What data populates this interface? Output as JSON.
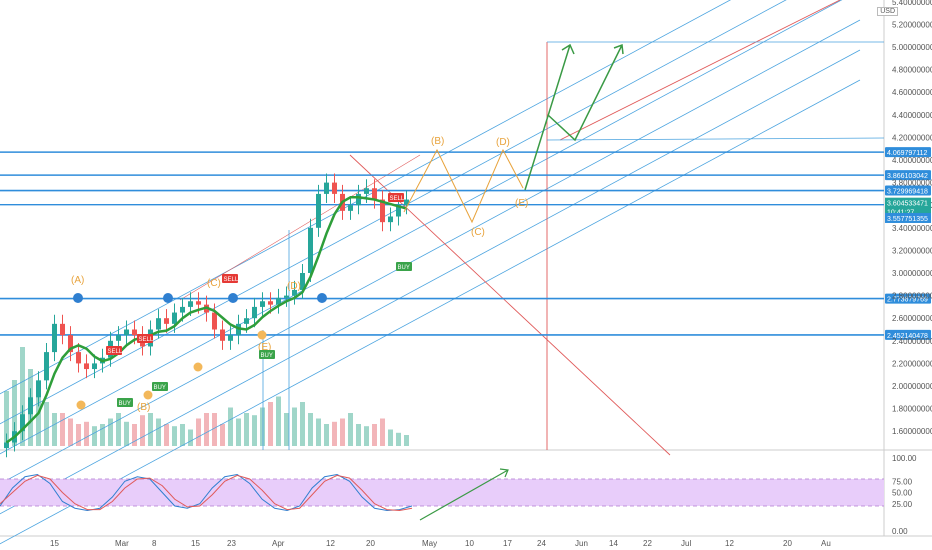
{
  "chart_data": {
    "type": "line",
    "currency": "USD",
    "price_axis": {
      "ticks": [
        "5.400000000",
        "5.200000000",
        "5.000000000",
        "4.800000000",
        "4.600000000",
        "4.400000000",
        "4.200000000",
        "4.000000000",
        "3.800000000",
        "3.600000000",
        "3.400000000",
        "3.200000000",
        "3.000000000",
        "2.800000000",
        "2.600000000",
        "2.400000000",
        "2.200000000",
        "2.000000000",
        "1.800000000",
        "1.600000000"
      ],
      "range": [
        1.45,
        5.45
      ]
    },
    "time_axis": {
      "ticks": [
        "15",
        "Mar",
        "8",
        "15",
        "23",
        "Apr",
        "12",
        "20",
        "May",
        "10",
        "17",
        "24",
        "Jun",
        "14",
        "22",
        "Jul",
        "12",
        "20",
        "Au"
      ]
    },
    "horizontal_levels": [
      {
        "value": 4.069797112,
        "label": "4.069797112"
      },
      {
        "value": 3.866103042,
        "label": "3.866103042"
      },
      {
        "value": 3.729969418,
        "label": "3.729969418"
      },
      {
        "value": 2.773679769,
        "label": "2.773679769"
      },
      {
        "value": 2.452140478,
        "label": "2.452140478"
      }
    ],
    "current_price": {
      "value": 3.604533471,
      "label": "3.604533471",
      "countdown": "10:41:27"
    },
    "extra_price_label": {
      "value": 3.557751355,
      "label": "3.557751355"
    },
    "signals": [
      "BUY",
      "BUY",
      "BUY",
      "SELL",
      "SELL",
      "SELL",
      "SELL",
      "BUY"
    ],
    "wave_labels": [
      "(A)",
      "(B)",
      "(C)",
      "(D)",
      "(E)",
      "(B)",
      "(C)",
      "(D)",
      "(E)"
    ],
    "oscillator": {
      "ticks": [
        "100.00",
        "75.00",
        "50.00",
        "25.00",
        "0.00"
      ],
      "upper_band": 80,
      "lower_band": 20,
      "range": [
        0,
        100
      ]
    },
    "closes": [
      1.5,
      1.6,
      1.75,
      1.9,
      2.05,
      2.3,
      2.55,
      2.45,
      2.3,
      2.2,
      2.15,
      2.2,
      2.25,
      2.4,
      2.45,
      2.5,
      2.45,
      2.35,
      2.5,
      2.6,
      2.55,
      2.65,
      2.7,
      2.75,
      2.72,
      2.65,
      2.5,
      2.4,
      2.45,
      2.55,
      2.6,
      2.7,
      2.75,
      2.72,
      2.78,
      2.8,
      2.85,
      3.0,
      3.4,
      3.7,
      3.8,
      3.7,
      3.55,
      3.6,
      3.7,
      3.75,
      3.65,
      3.45,
      3.5,
      3.6,
      3.65
    ],
    "volumes": [
      0.5,
      0.6,
      0.9,
      0.7,
      0.5,
      0.4,
      0.3,
      0.3,
      0.25,
      0.2,
      0.22,
      0.18,
      0.2,
      0.25,
      0.3,
      0.22,
      0.2,
      0.28,
      0.3,
      0.25,
      0.2,
      0.18,
      0.2,
      0.15,
      0.25,
      0.3,
      0.3,
      0.2,
      0.35,
      0.25,
      0.3,
      0.28,
      0.35,
      0.4,
      0.45,
      0.3,
      0.35,
      0.4,
      0.3,
      0.25,
      0.2,
      0.22,
      0.25,
      0.3,
      0.2,
      0.18,
      0.2,
      0.25,
      0.15,
      0.12,
      0.1
    ],
    "stoch_k": [
      20,
      60,
      85,
      90,
      70,
      30,
      15,
      10,
      15,
      40,
      75,
      85,
      80,
      50,
      20,
      15,
      25,
      60,
      85,
      90,
      70,
      35,
      15,
      10,
      20,
      60,
      85,
      90,
      75,
      40,
      15,
      10,
      12,
      20
    ],
    "stoch_d": [
      25,
      50,
      75,
      88,
      80,
      50,
      25,
      12,
      12,
      30,
      60,
      80,
      82,
      65,
      35,
      18,
      20,
      45,
      75,
      88,
      80,
      55,
      25,
      12,
      15,
      45,
      75,
      88,
      82,
      55,
      25,
      12,
      10,
      15
    ]
  }
}
